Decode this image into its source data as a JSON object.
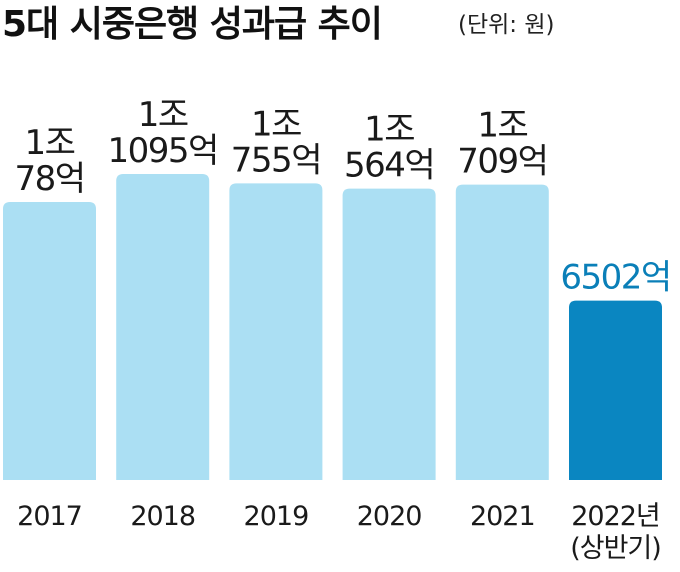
{
  "header": {
    "title": "5대 시중은행 성과급 추이",
    "unit": "(단위: 원)"
  },
  "colors": {
    "bar": "#abdff3",
    "bar_highlight": "#0a86c1",
    "label_highlight": "#0a7fb8"
  },
  "chart_data": {
    "type": "bar",
    "title": "5대 시중은행 성과급 추이",
    "unit": "(단위: 원)",
    "categories": [
      [
        "2017"
      ],
      [
        "2018"
      ],
      [
        "2019"
      ],
      [
        "2020"
      ],
      [
        "2021"
      ],
      [
        "2022년",
        "(상반기)"
      ]
    ],
    "values": [
      1007800000000,
      1109500000000,
      1075500000000,
      1056400000000,
      1070900000000,
      650200000000
    ],
    "value_labels": [
      [
        "1조",
        "78억"
      ],
      [
        "1조",
        "1095억"
      ],
      [
        "1조",
        "755억"
      ],
      [
        "1조",
        "564억"
      ],
      [
        "1조",
        "709억"
      ],
      [
        "6502억"
      ]
    ],
    "highlight_index": 5,
    "grid": false,
    "legend": "none",
    "ylim": [
      0,
      1200000000000
    ]
  }
}
